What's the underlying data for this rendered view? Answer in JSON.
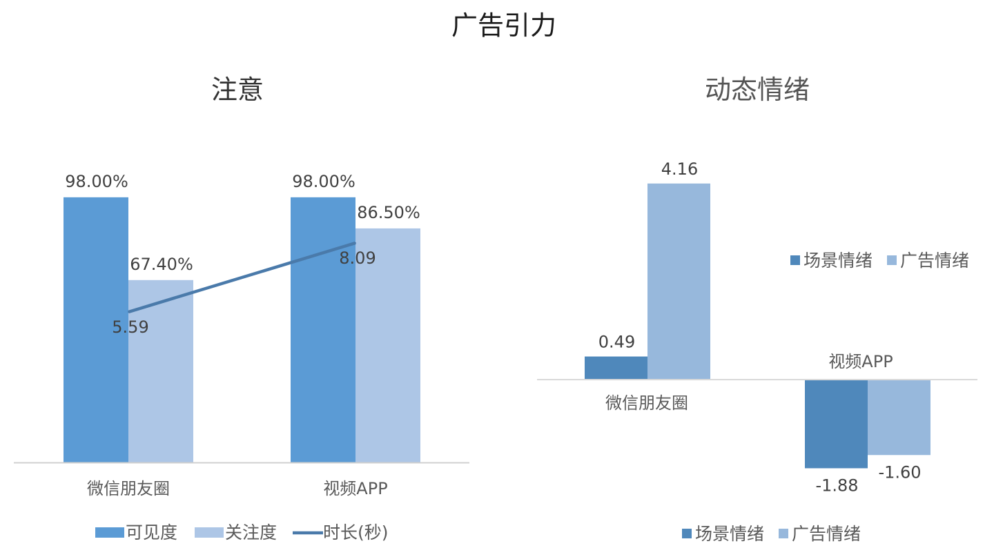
{
  "title": "广告引力",
  "chart_data": [
    {
      "type": "bar",
      "title": "注意",
      "categories": [
        "微信朋友圈",
        "视频APP"
      ],
      "series": [
        {
          "name": "可见度",
          "kind": "bar",
          "values": [
            98.0,
            98.0
          ],
          "labels": [
            "98.00%",
            "98.00%"
          ],
          "color": "#5b9bd5"
        },
        {
          "name": "关注度",
          "kind": "bar",
          "values": [
            67.4,
            86.5
          ],
          "labels": [
            "67.40%",
            "86.50%"
          ],
          "color": "#adc6e6"
        },
        {
          "name": "时长(秒)",
          "kind": "line",
          "values": [
            5.59,
            8.09
          ],
          "labels": [
            "5.59",
            "8.09"
          ],
          "color": "#4a7aaa"
        }
      ],
      "legend_position": "bottom",
      "grid": false
    },
    {
      "type": "bar",
      "title": "动态情绪",
      "categories": [
        "微信朋友圈",
        "视频APP"
      ],
      "series": [
        {
          "name": "场景情绪",
          "values": [
            0.49,
            -1.88
          ],
          "labels": [
            "0.49",
            "-1.88"
          ],
          "color": "#4f88bb"
        },
        {
          "name": "广告情绪",
          "values": [
            4.16,
            -1.6
          ],
          "labels": [
            "4.16",
            "-1.60"
          ],
          "color": "#97b8dc"
        }
      ],
      "legend_entries": [
        "场景情绪",
        "广告情绪"
      ],
      "legend_position": "right and bottom",
      "grid": false
    }
  ]
}
